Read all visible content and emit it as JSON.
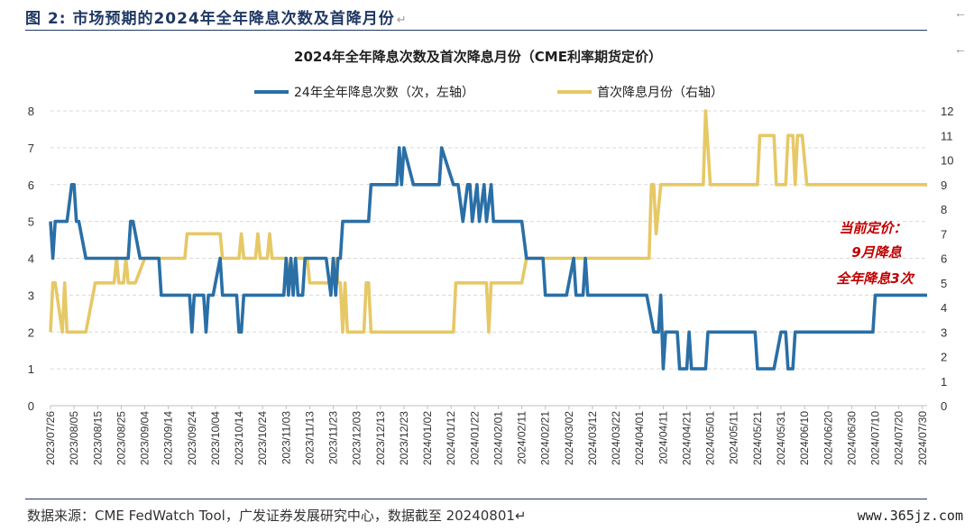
{
  "caption": {
    "prefix": "图 2:",
    "text": "市场预期的2024年全年降息次数及首降月份",
    "mark": "↵"
  },
  "source_note": "数据来源：CME FedWatch Tool，广发证券发展研究中心，数据截至 20240801↵",
  "watermark": "www.365jz.com",
  "side_arrow": "←",
  "colors": {
    "cuts_series": "#2a6fa6",
    "month_series": "#e6c866",
    "annotation": "#c00000",
    "grid": "#d9d9d9",
    "caption": "#1f3864"
  },
  "chart_data": {
    "type": "line",
    "title": "2024年全年降息次数及首次降息月份（CME利率期货定价）",
    "legend_position": "top",
    "grid": true,
    "left_axis": {
      "ylim": [
        0,
        8
      ],
      "ticks": [
        "0",
        "1",
        "2",
        "3",
        "4",
        "5",
        "6",
        "7",
        "8"
      ]
    },
    "right_axis": {
      "ylim": [
        0,
        12
      ],
      "ticks": [
        "0",
        "1",
        "2",
        "3",
        "4",
        "5",
        "6",
        "7",
        "8",
        "9",
        "10",
        "11",
        "12"
      ]
    },
    "x_tick_labels": [
      "2023/07/26",
      "2023/08/05",
      "2023/08/15",
      "2023/08/25",
      "2023/09/04",
      "2023/09/14",
      "2023/09/24",
      "2023/10/04",
      "2023/10/14",
      "2023/10/24",
      "2023/11/03",
      "2023/11/13",
      "2023/11/23",
      "2023/12/03",
      "2023/12/13",
      "2023/12/23",
      "2024/01/02",
      "2024/01/12",
      "2024/01/22",
      "2024/02/01",
      "2024/02/11",
      "2024/02/21",
      "2024/03/02",
      "2024/03/12",
      "2024/03/22",
      "2024/04/01",
      "2024/04/11",
      "2024/04/21",
      "2024/05/01",
      "2024/05/11",
      "2024/05/21",
      "2024/05/31",
      "2024/06/10",
      "2024/06/20",
      "2024/06/30",
      "2024/07/10",
      "2024/07/20",
      "2024/07/30"
    ],
    "x_range": [
      "2023/07/26",
      "2024/08/01"
    ],
    "annotation": [
      "当前定价：",
      "9月降息",
      "全年降息3次"
    ],
    "series": [
      {
        "name": "24年全年降息次数（次，左轴）",
        "axis": "left",
        "points": [
          [
            "2023/07/26",
            5
          ],
          [
            "2023/07/27",
            4
          ],
          [
            "2023/07/28",
            5
          ],
          [
            "2023/08/02",
            5
          ],
          [
            "2023/08/04",
            6
          ],
          [
            "2023/08/05",
            6
          ],
          [
            "2023/08/06",
            5
          ],
          [
            "2023/08/07",
            5
          ],
          [
            "2023/08/10",
            4
          ],
          [
            "2023/08/28",
            4
          ],
          [
            "2023/08/29",
            5
          ],
          [
            "2023/08/30",
            5
          ],
          [
            "2023/09/02",
            4
          ],
          [
            "2023/09/05",
            4
          ],
          [
            "2023/09/10",
            4
          ],
          [
            "2023/09/11",
            3
          ],
          [
            "2023/09/23",
            3
          ],
          [
            "2023/09/24",
            2
          ],
          [
            "2023/09/25",
            3
          ],
          [
            "2023/09/29",
            3
          ],
          [
            "2023/09/30",
            2
          ],
          [
            "2023/10/01",
            3
          ],
          [
            "2023/10/03",
            3
          ],
          [
            "2023/10/06",
            4
          ],
          [
            "2023/10/07",
            3
          ],
          [
            "2023/10/13",
            3
          ],
          [
            "2023/10/14",
            2
          ],
          [
            "2023/10/15",
            2
          ],
          [
            "2023/10/16",
            3
          ],
          [
            "2023/11/02",
            3
          ],
          [
            "2023/11/03",
            4
          ],
          [
            "2023/11/04",
            3
          ],
          [
            "2023/11/05",
            4
          ],
          [
            "2023/11/06",
            3
          ],
          [
            "2023/11/07",
            4
          ],
          [
            "2023/11/08",
            3
          ],
          [
            "2023/11/10",
            3
          ],
          [
            "2023/11/11",
            4
          ],
          [
            "2023/11/20",
            4
          ],
          [
            "2023/11/22",
            3
          ],
          [
            "2023/11/23",
            4
          ],
          [
            "2023/11/24",
            3
          ],
          [
            "2023/11/25",
            4
          ],
          [
            "2023/11/26",
            4
          ],
          [
            "2023/11/27",
            5
          ],
          [
            "2023/12/08",
            5
          ],
          [
            "2023/12/09",
            6
          ],
          [
            "2023/12/20",
            6
          ],
          [
            "2023/12/21",
            7
          ],
          [
            "2023/12/22",
            6
          ],
          [
            "2023/12/23",
            7
          ],
          [
            "2023/12/27",
            6
          ],
          [
            "2024/01/07",
            6
          ],
          [
            "2024/01/08",
            7
          ],
          [
            "2024/01/13",
            6
          ],
          [
            "2024/01/15",
            6
          ],
          [
            "2024/01/17",
            5
          ],
          [
            "2024/01/19",
            6
          ],
          [
            "2024/01/20",
            6
          ],
          [
            "2024/01/21",
            5
          ],
          [
            "2024/01/23",
            6
          ],
          [
            "2024/01/24",
            5
          ],
          [
            "2024/01/26",
            6
          ],
          [
            "2024/01/27",
            5
          ],
          [
            "2024/01/29",
            6
          ],
          [
            "2024/01/30",
            5
          ],
          [
            "2024/02/11",
            5
          ],
          [
            "2024/02/13",
            4
          ],
          [
            "2024/02/20",
            4
          ],
          [
            "2024/02/21",
            3
          ],
          [
            "2024/03/01",
            3
          ],
          [
            "2024/03/04",
            4
          ],
          [
            "2024/03/05",
            3
          ],
          [
            "2024/03/08",
            3
          ],
          [
            "2024/03/09",
            4
          ],
          [
            "2024/03/10",
            3
          ],
          [
            "2024/04/04",
            3
          ],
          [
            "2024/04/07",
            2
          ],
          [
            "2024/04/09",
            2
          ],
          [
            "2024/04/10",
            3
          ],
          [
            "2024/04/11",
            1
          ],
          [
            "2024/04/12",
            2
          ],
          [
            "2024/04/17",
            2
          ],
          [
            "2024/04/18",
            1
          ],
          [
            "2024/04/21",
            1
          ],
          [
            "2024/04/22",
            2
          ],
          [
            "2024/04/23",
            1
          ],
          [
            "2024/04/29",
            1
          ],
          [
            "2024/04/30",
            2
          ],
          [
            "2024/05/20",
            2
          ],
          [
            "2024/05/21",
            1
          ],
          [
            "2024/05/28",
            1
          ],
          [
            "2024/05/31",
            2
          ],
          [
            "2024/06/02",
            2
          ],
          [
            "2024/06/03",
            1
          ],
          [
            "2024/06/05",
            1
          ],
          [
            "2024/06/06",
            2
          ],
          [
            "2024/07/09",
            2
          ],
          [
            "2024/07/10",
            3
          ],
          [
            "2024/08/01",
            3
          ]
        ]
      },
      {
        "name": "首次降息月份（右轴）",
        "axis": "right",
        "points": [
          [
            "2023/07/26",
            3
          ],
          [
            "2023/07/27",
            5
          ],
          [
            "2023/07/28",
            5
          ],
          [
            "2023/07/31",
            3
          ],
          [
            "2023/08/01",
            5
          ],
          [
            "2023/08/02",
            3
          ],
          [
            "2023/08/10",
            3
          ],
          [
            "2023/08/14",
            5
          ],
          [
            "2023/08/22",
            5
          ],
          [
            "2023/08/23",
            6
          ],
          [
            "2023/08/24",
            5
          ],
          [
            "2023/08/26",
            5
          ],
          [
            "2023/08/27",
            6
          ],
          [
            "2023/08/28",
            5
          ],
          [
            "2023/08/31",
            5
          ],
          [
            "2023/09/04",
            6
          ],
          [
            "2023/09/21",
            6
          ],
          [
            "2023/09/22",
            7
          ],
          [
            "2023/10/06",
            7
          ],
          [
            "2023/10/07",
            6
          ],
          [
            "2023/10/14",
            6
          ],
          [
            "2023/10/15",
            7
          ],
          [
            "2023/10/16",
            6
          ],
          [
            "2023/10/21",
            6
          ],
          [
            "2023/10/22",
            7
          ],
          [
            "2023/10/23",
            6
          ],
          [
            "2023/10/26",
            6
          ],
          [
            "2023/10/27",
            7
          ],
          [
            "2023/10/28",
            6
          ],
          [
            "2023/11/03",
            6
          ],
          [
            "2023/11/04",
            5
          ],
          [
            "2023/11/05",
            6
          ],
          [
            "2023/11/06",
            5
          ],
          [
            "2023/11/07",
            6
          ],
          [
            "2023/11/12",
            6
          ],
          [
            "2023/11/13",
            5
          ],
          [
            "2023/11/23",
            5
          ],
          [
            "2023/11/24",
            6
          ],
          [
            "2023/11/25",
            5
          ],
          [
            "2023/11/26",
            5
          ],
          [
            "2023/11/27",
            3
          ],
          [
            "2023/11/28",
            5
          ],
          [
            "2023/11/29",
            3
          ],
          [
            "2023/12/06",
            3
          ],
          [
            "2023/12/07",
            5
          ],
          [
            "2023/12/08",
            5
          ],
          [
            "2023/12/09",
            3
          ],
          [
            "2024/01/13",
            3
          ],
          [
            "2024/01/14",
            5
          ],
          [
            "2024/01/27",
            5
          ],
          [
            "2024/01/28",
            3
          ],
          [
            "2024/01/29",
            5
          ],
          [
            "2024/02/11",
            5
          ],
          [
            "2024/02/13",
            6
          ],
          [
            "2024/04/05",
            6
          ],
          [
            "2024/04/06",
            9
          ],
          [
            "2024/04/07",
            9
          ],
          [
            "2024/04/08",
            7
          ],
          [
            "2024/04/10",
            9
          ],
          [
            "2024/04/28",
            9
          ],
          [
            "2024/04/29",
            12
          ],
          [
            "2024/05/01",
            9
          ],
          [
            "2024/05/21",
            9
          ],
          [
            "2024/05/22",
            11
          ],
          [
            "2024/05/28",
            11
          ],
          [
            "2024/05/29",
            9
          ],
          [
            "2024/06/02",
            9
          ],
          [
            "2024/06/03",
            11
          ],
          [
            "2024/06/05",
            11
          ],
          [
            "2024/06/06",
            9
          ],
          [
            "2024/06/07",
            11
          ],
          [
            "2024/06/09",
            11
          ],
          [
            "2024/06/11",
            9
          ],
          [
            "2024/08/01",
            9
          ]
        ]
      }
    ]
  }
}
